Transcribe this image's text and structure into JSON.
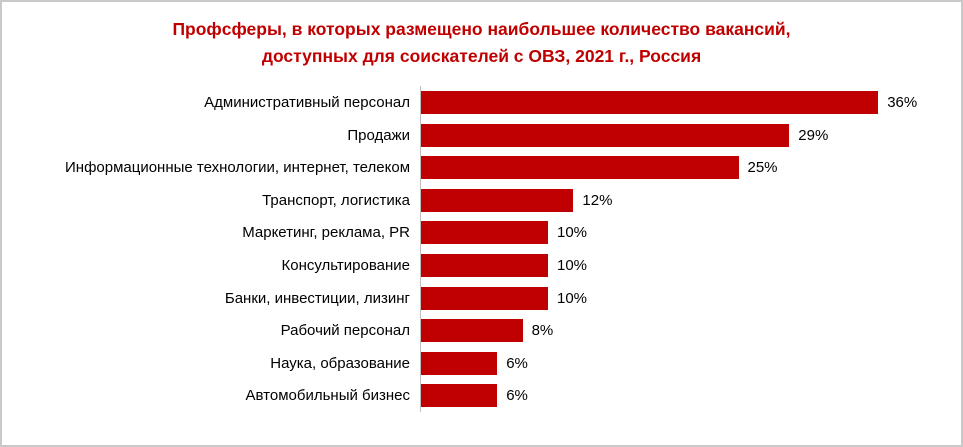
{
  "chart_data": {
    "type": "bar",
    "orientation": "horizontal",
    "title": "Профсферы, в которых размещено наибольшее количество вакансий,\nдоступных  для соискателей с ОВЗ, 2021 г., Россия",
    "categories": [
      "Административный персонал",
      "Продажи",
      "Информационные технологии, интернет, телеком",
      "Транспорт, логистика",
      "Маркетинг, реклама, PR",
      "Консультирование",
      "Банки, инвестиции, лизинг",
      "Рабочий персонал",
      "Наука, образование",
      "Автомобильный бизнес"
    ],
    "values": [
      36,
      29,
      25,
      12,
      10,
      10,
      10,
      8,
      6,
      6
    ],
    "value_labels": [
      "36%",
      "29%",
      "25%",
      "12%",
      "10%",
      "10%",
      "10%",
      "8%",
      "6%",
      "6%"
    ],
    "xlabel": "",
    "ylabel": "",
    "xlim": [
      0,
      40
    ],
    "grid": false,
    "legend": false,
    "bar_color": "#C00000",
    "title_color": "#C00000",
    "axis_color": "#BFBFBF"
  }
}
